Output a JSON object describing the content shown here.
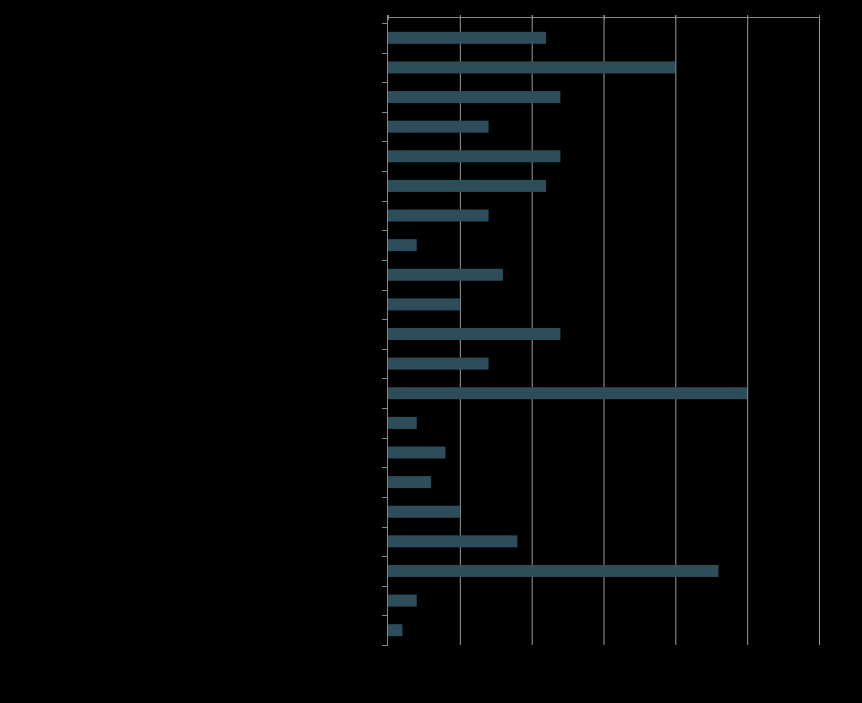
{
  "chart_data": {
    "type": "bar",
    "orientation": "horizontal",
    "title": "",
    "xlabel": "",
    "ylabel": "",
    "xlim": [
      0,
      30
    ],
    "grid": true,
    "categories": [
      "",
      "",
      "",
      "",
      "",
      "",
      "",
      "",
      "",
      "",
      "",
      "",
      "",
      "",
      "",
      "",
      "",
      "",
      "",
      "",
      ""
    ],
    "values": [
      11,
      20,
      12,
      7,
      12,
      11,
      7,
      2,
      8,
      5,
      12,
      7,
      25,
      2,
      4,
      3,
      5,
      9,
      23,
      2,
      1
    ],
    "colors": {
      "background": "#000000",
      "bar": "#2e4d5a",
      "axis": "#888888",
      "grid": "#9a9a9a"
    }
  }
}
